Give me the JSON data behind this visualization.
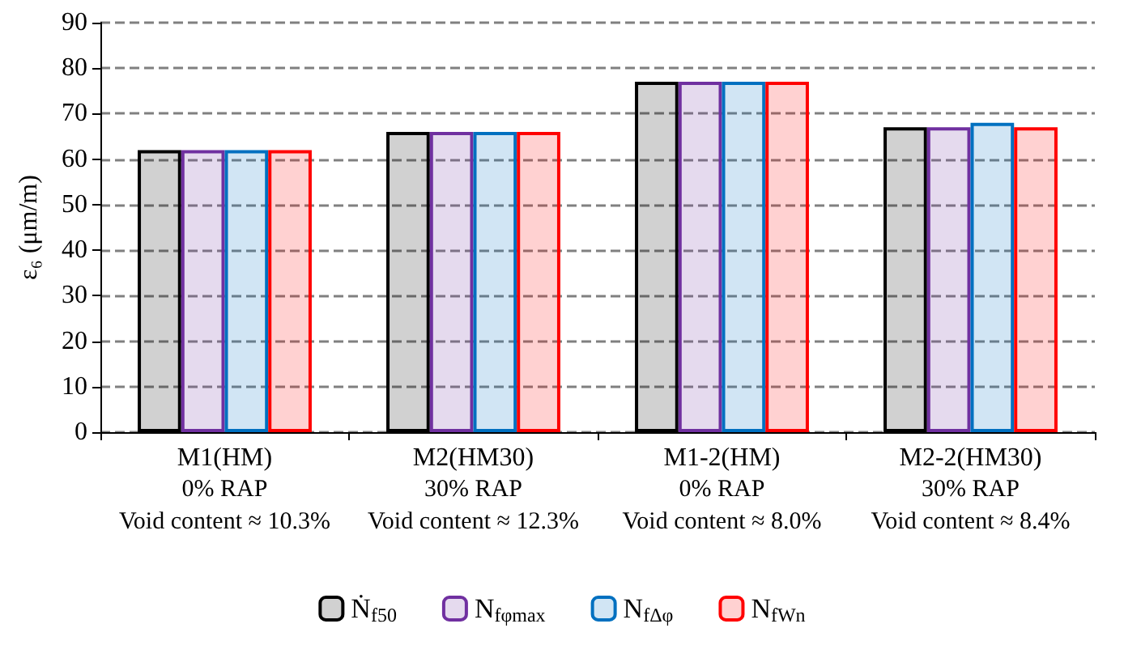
{
  "chart_data": {
    "type": "bar",
    "ylabel": "ε₆ (μm/m)",
    "categories": [
      "M1(HM)",
      "M2(HM30)",
      "M1-2(HM)",
      "M2-2(HM30)"
    ],
    "series": [
      {
        "name": "Ṅ$_{f50}$",
        "color": "#000000",
        "values": [
          62,
          66,
          77,
          67
        ]
      },
      {
        "name": "N$_{fφmax}$",
        "color": "#7030a0",
        "values": [
          62,
          66,
          77,
          67
        ]
      },
      {
        "name": "N$_{fΔφ}$",
        "color": "#0070c0",
        "values": [
          62,
          66,
          77,
          68
        ]
      },
      {
        "name": "N$_{fWn}$",
        "color": "#ff0000",
        "values": [
          62,
          66,
          77,
          67
        ]
      }
    ],
    "ylim": [
      0,
      90
    ],
    "yticks": [
      0,
      10,
      20,
      30,
      40,
      50,
      60,
      70,
      80,
      90
    ],
    "grid": "y",
    "legend": "bottom",
    "annotations": [
      "0% RAP",
      "Void content ≈ 10.3%",
      "30% RAP",
      "Void content ≈ 12.3%",
      "0% RAP",
      "Void content ≈ 8.0%",
      "30% RAP",
      "Void content ≈ 8.4%"
    ]
  }
}
